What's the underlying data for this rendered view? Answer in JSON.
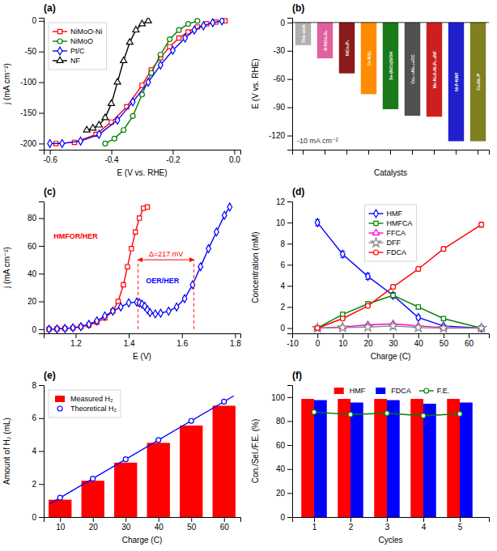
{
  "chart_data": [
    {
      "type": "line",
      "title": "(a)",
      "xlabel": "E (V vs. RHE)",
      "ylabel": "j (mA cm⁻²)",
      "xlim": [
        -0.62,
        0.02
      ],
      "ylim": [
        -210,
        5
      ],
      "xticks": [
        -0.6,
        -0.4,
        -0.2,
        {
          "value": 0.0,
          "label": "0.0"
        }
      ],
      "yticks": [
        -200,
        -150,
        -100,
        -50,
        0
      ],
      "grid": false,
      "legend": "upper left",
      "series": [
        {
          "name": "NiMoO-Ni",
          "color": "red",
          "marker": "square",
          "x": [
            -0.03,
            -0.06,
            -0.09,
            -0.12,
            -0.15,
            -0.18,
            -0.21,
            -0.24,
            -0.27,
            -0.3,
            -0.35,
            -0.4,
            -0.45,
            -0.52,
            -0.58
          ],
          "values": [
            0,
            -2,
            -5,
            -10,
            -18,
            -28,
            -42,
            -60,
            -80,
            -105,
            -140,
            -165,
            -185,
            -198,
            -200
          ]
        },
        {
          "name": "NiMoO",
          "color": "green",
          "marker": "circle",
          "x": [
            -0.12,
            -0.15,
            -0.18,
            -0.21,
            -0.24,
            -0.27,
            -0.3,
            -0.33,
            -0.36,
            -0.39,
            -0.42
          ],
          "values": [
            0,
            -5,
            -15,
            -30,
            -55,
            -85,
            -120,
            -155,
            -178,
            -192,
            -200
          ]
        },
        {
          "name": "Pt/C",
          "color": "blue",
          "marker": "diamond",
          "x": [
            -0.04,
            -0.07,
            -0.1,
            -0.13,
            -0.16,
            -0.2,
            -0.24,
            -0.28,
            -0.33,
            -0.38,
            -0.44,
            -0.5,
            -0.56,
            -0.6
          ],
          "values": [
            0,
            -3,
            -8,
            -15,
            -28,
            -48,
            -72,
            -100,
            -132,
            -162,
            -185,
            -196,
            -200,
            -200
          ]
        },
        {
          "name": "NF",
          "color": "black",
          "marker": "triangle",
          "x": [
            -0.28,
            -0.3,
            -0.32,
            -0.34,
            -0.36,
            -0.38,
            -0.4,
            -0.42,
            -0.44,
            -0.46,
            -0.48
          ],
          "values": [
            0,
            -5,
            -15,
            -35,
            -65,
            -100,
            -135,
            -158,
            -170,
            -175,
            -178
          ]
        }
      ]
    },
    {
      "type": "bar",
      "title": "(b)",
      "xlabel": "Catalysts",
      "ylabel": "E (V vs. RHE)",
      "ylim": [
        -135,
        5
      ],
      "yticks": [
        -120,
        -90,
        -60,
        -30,
        0
      ],
      "grid": false,
      "tick_labels": "y",
      "annotations": [
        {
          "text": "-10 mA cm⁻²"
        }
      ],
      "categories": [
        "This work",
        "N-NiCo₂S₄",
        "NiCo₂P₁",
        "Co-NiS₂",
        "Se-(NiCo)S/OH",
        "Co₀.₇₅Ni₀.₂₅/CC",
        "Mo-Ni₃S₂Ni₁P₀.₅/NF",
        "Ni-P-NiNF",
        "Co₄Ni₁-P"
      ],
      "values": [
        -24,
        -38,
        -54,
        -76,
        -92,
        -99,
        -100,
        -126,
        -126
      ],
      "colors": [
        "#b0b0b0",
        "#e060a0",
        "#8b1a1a",
        "#ff8c00",
        "#1a7a1a",
        "#505050",
        "#cc2020",
        "#2020cc",
        "#808020"
      ]
    },
    {
      "type": "line",
      "title": "(c)",
      "xlabel": "E (V)",
      "ylabel": "j (mA cm⁻²)",
      "xlim": [
        1.08,
        1.82
      ],
      "ylim": [
        -3,
        92
      ],
      "xticks": [
        1.2,
        1.4,
        1.6,
        1.8
      ],
      "yticks": [
        0,
        20,
        40,
        60,
        80
      ],
      "grid": false,
      "annotations": [
        {
          "text": "Δ=217 mV",
          "color": "red",
          "x1": 1.435,
          "x2": 1.645,
          "y": 50,
          "y0": 0
        }
      ],
      "series": [
        {
          "name": "HMFOR/HER",
          "color": "red",
          "marker": "square",
          "x": [
            1.1,
            1.13,
            1.16,
            1.19,
            1.22,
            1.25,
            1.28,
            1.31,
            1.34,
            1.36,
            1.38,
            1.395,
            1.41,
            1.425,
            1.44,
            1.455,
            1.47
          ],
          "values": [
            0,
            0.2,
            0.5,
            1.0,
            1.8,
            3.0,
            5.0,
            8.0,
            13,
            20,
            32,
            45,
            58,
            70,
            80,
            87,
            88
          ]
        },
        {
          "name": "OER/HER",
          "color": "blue",
          "marker": "diamond",
          "x": [
            1.1,
            1.13,
            1.16,
            1.19,
            1.22,
            1.25,
            1.28,
            1.31,
            1.34,
            1.37,
            1.4,
            1.43,
            1.44,
            1.45,
            1.46,
            1.47,
            1.48,
            1.5,
            1.52,
            1.55,
            1.58,
            1.61,
            1.64,
            1.67,
            1.7,
            1.73,
            1.76,
            1.78
          ],
          "values": [
            0,
            0.2,
            0.5,
            1.0,
            1.8,
            3.5,
            6.0,
            9.5,
            13,
            16,
            19,
            19.5,
            19,
            18,
            16.5,
            14,
            12,
            11,
            11.5,
            13,
            16,
            22,
            32,
            45,
            58,
            70,
            82,
            88
          ]
        }
      ]
    },
    {
      "type": "line",
      "title": "(d)",
      "xlabel": "Charge (C)",
      "ylabel": "Concentration (mM)",
      "xlim": [
        -10,
        68
      ],
      "ylim": [
        -0.5,
        12
      ],
      "xticks": [
        -10,
        0,
        10,
        20,
        30,
        40,
        50,
        60
      ],
      "yticks": [
        0,
        2,
        4,
        6,
        8,
        10,
        12
      ],
      "grid": false,
      "legend": "upper center",
      "x": [
        0,
        10,
        20,
        30,
        40,
        50,
        65
      ],
      "series": [
        {
          "name": "HMF",
          "color": "blue",
          "marker": "diamond",
          "values": [
            10.0,
            7.0,
            4.9,
            3.1,
            1.0,
            0.2,
            0.0
          ],
          "errors": [
            0.3,
            0.3,
            0.3,
            0.25,
            0.2,
            0.1,
            0.05
          ]
        },
        {
          "name": "HMFCA",
          "color": "green",
          "marker": "square",
          "values": [
            0.0,
            1.3,
            2.3,
            3.1,
            2.0,
            0.9,
            0.0
          ],
          "errors": [
            0.05,
            0.15,
            0.2,
            0.25,
            0.2,
            0.1,
            0.05
          ]
        },
        {
          "name": "FFCA",
          "color": "#ff00cc",
          "marker": "triangle",
          "values": [
            0.0,
            0.1,
            0.3,
            0.4,
            0.2,
            0.05,
            0.0
          ],
          "errors": [
            0.02,
            0.05,
            0.08,
            0.08,
            0.05,
            0.03,
            0.02
          ]
        },
        {
          "name": "DFF",
          "color": "#888888",
          "marker": "star",
          "values": [
            0.0,
            0.05,
            0.1,
            0.2,
            0.05,
            0.0,
            0.0
          ],
          "errors": [
            0.01,
            0.02,
            0.03,
            0.04,
            0.02,
            0.01,
            0.01
          ]
        },
        {
          "name": "FDCA",
          "color": "red",
          "marker": "circle",
          "values": [
            0.0,
            0.9,
            2.1,
            3.9,
            5.6,
            7.5,
            9.8
          ],
          "errors": [
            0.05,
            0.1,
            0.15,
            0.2,
            0.2,
            0.2,
            0.25
          ]
        }
      ]
    },
    {
      "type": "bar",
      "title": "(e)",
      "xlabel": "Charge (C)",
      "ylabel": "Amount of H₂ (mL)",
      "xlim": [
        5,
        65
      ],
      "ylim": [
        0,
        8
      ],
      "xticks": [
        10,
        20,
        30,
        40,
        50,
        60
      ],
      "yticks": [
        0,
        2,
        4,
        6,
        8
      ],
      "grid": false,
      "legend": "upper left",
      "x": [
        10,
        20,
        30,
        40,
        50,
        60
      ],
      "series": [
        {
          "name": "Measured H₂",
          "type": "bar",
          "color": "red",
          "values": [
            1.05,
            2.2,
            3.3,
            4.5,
            5.55,
            6.75
          ]
        },
        {
          "type": "line",
          "color": "blue",
          "x": [
            7,
            63
          ],
          "values": [
            0.8202,
            7.3498
          ]
        },
        {
          "name": "Theoretical H₂",
          "type": "scatter",
          "color": "blue",
          "marker": "circle",
          "values": [
            1.17,
            2.33,
            3.5,
            4.67,
            5.83,
            7.0
          ],
          "errors": [
            0.05,
            0.05,
            0.08,
            0.08,
            0.1,
            0.1
          ]
        }
      ]
    },
    {
      "type": "bar",
      "title": "(f)",
      "xlabel": "Cycles",
      "ylabel": "Con./Sel./F.E. (%)",
      "xlim": [
        0.4,
        5.8
      ],
      "ylim": [
        0,
        110
      ],
      "xticks": [
        1,
        2,
        3,
        4,
        5
      ],
      "yticks": [
        0,
        20,
        40,
        60,
        80,
        100
      ],
      "grid": false,
      "legend": "upper center",
      "x": [
        1,
        2,
        3,
        4,
        5
      ],
      "series": [
        {
          "name": "HMF",
          "type": "bar",
          "color": "red",
          "values": [
            98.5,
            98.5,
            98.5,
            98.5,
            98.5
          ]
        },
        {
          "name": "FDCA",
          "type": "bar",
          "color": "blue",
          "values": [
            97.5,
            95.5,
            97.5,
            94.5,
            95.5
          ]
        },
        {
          "name": "F.E.",
          "type": "line",
          "color": "green",
          "marker": "circle",
          "values": [
            87.5,
            85.5,
            86.5,
            84.5,
            86.0
          ],
          "errors": [
            1.0,
            1.0,
            1.0,
            1.0,
            1.0
          ]
        }
      ]
    }
  ]
}
